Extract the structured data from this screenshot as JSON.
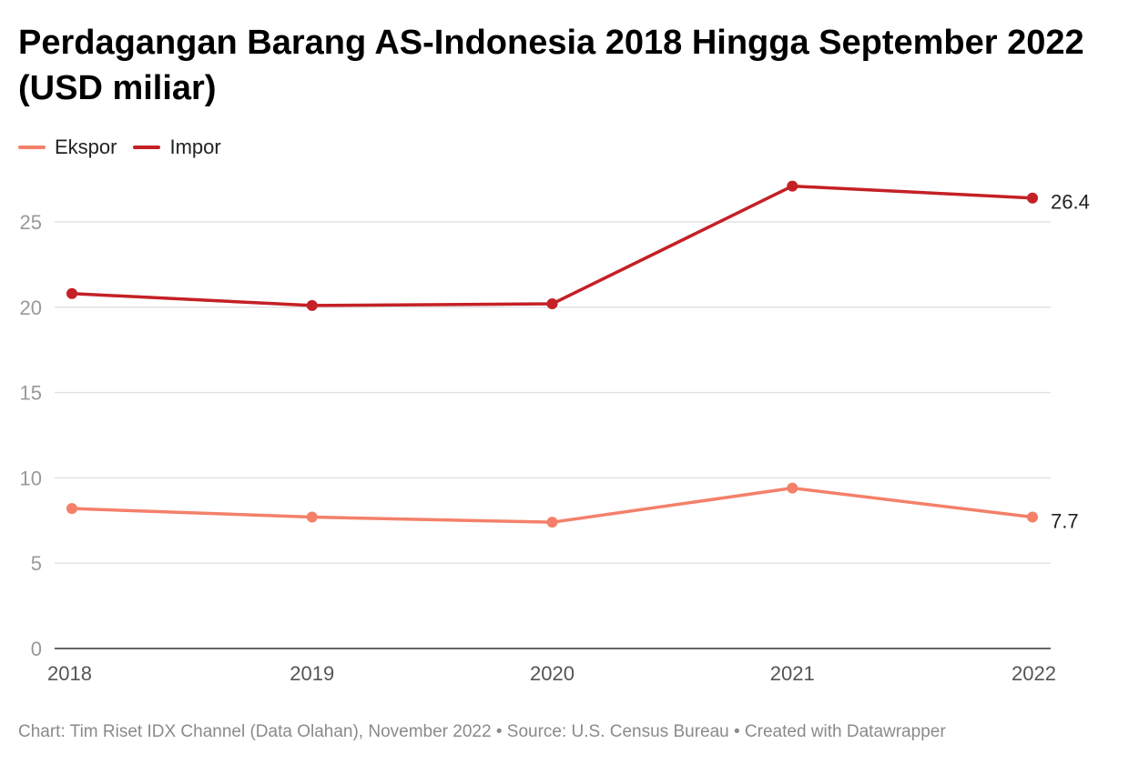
{
  "chart_data": {
    "type": "line",
    "title": "Perdagangan Barang AS-Indonesia 2018 Hingga September 2022 (USD miliar)",
    "x": [
      "2018",
      "2019",
      "2020",
      "2021",
      "2022"
    ],
    "series": [
      {
        "name": "Ekspor",
        "color": "#f4806a",
        "values": [
          8.2,
          7.7,
          7.4,
          9.4,
          7.7
        ],
        "end_label": "7.7"
      },
      {
        "name": "Impor",
        "color": "#c42026",
        "values": [
          20.8,
          20.1,
          20.2,
          27.1,
          26.4
        ],
        "end_label": "26.4"
      }
    ],
    "y_ticks": [
      0,
      5,
      10,
      15,
      20,
      25
    ],
    "ylim": [
      0,
      27.5
    ],
    "grid": true,
    "legend_placement": "top-left"
  },
  "footer": {
    "credit": "Chart: Tim Riset IDX Channel (Data Olahan), November 2022 • Source: U.S. Census Bureau • Created with Datawrapper"
  }
}
